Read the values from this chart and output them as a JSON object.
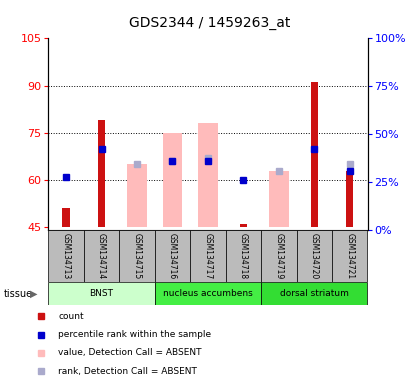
{
  "title": "GDS2344 / 1459263_at",
  "samples": [
    "GSM134713",
    "GSM134714",
    "GSM134715",
    "GSM134716",
    "GSM134717",
    "GSM134718",
    "GSM134719",
    "GSM134720",
    "GSM134721"
  ],
  "ylim_left": [
    44,
    105
  ],
  "ylim_right": [
    0,
    100
  ],
  "yticks_left": [
    45,
    60,
    75,
    90,
    105
  ],
  "yticks_right": [
    0,
    25,
    50,
    75,
    100
  ],
  "baseline": 45,
  "red_bars": [
    51,
    79,
    45,
    45,
    45,
    46,
    45,
    91,
    63
  ],
  "blue_dots": [
    61,
    70,
    null,
    66,
    66,
    60,
    null,
    70,
    63
  ],
  "pink_bars": [
    null,
    null,
    65,
    75,
    78,
    null,
    63,
    null,
    null
  ],
  "lavender_dots": [
    null,
    null,
    65,
    66,
    67,
    null,
    63,
    null,
    65
  ],
  "tissue_groups": [
    {
      "label": "BNST",
      "start": 0,
      "end": 3,
      "color": "#c8f0c8"
    },
    {
      "label": "nucleus accumbens",
      "start": 3,
      "end": 6,
      "color": "#44ee55"
    },
    {
      "label": "dorsal striatum",
      "start": 6,
      "end": 9,
      "color": "#44ee55"
    }
  ],
  "tissue_colors": [
    "#ccffcc",
    "#44ee44",
    "#33dd33"
  ],
  "bar_color": "#cc1111",
  "blue_color": "#0000cc",
  "pink_color": "#ffbbbb",
  "lavender_color": "#aaaacc",
  "bg_plot": "#ffffff",
  "sample_bg": "#bbbbbb",
  "legend_items": [
    {
      "color": "#cc1111",
      "label": "count"
    },
    {
      "color": "#0000cc",
      "label": "percentile rank within the sample"
    },
    {
      "color": "#ffbbbb",
      "label": "value, Detection Call = ABSENT"
    },
    {
      "color": "#aaaacc",
      "label": "rank, Detection Call = ABSENT"
    }
  ]
}
